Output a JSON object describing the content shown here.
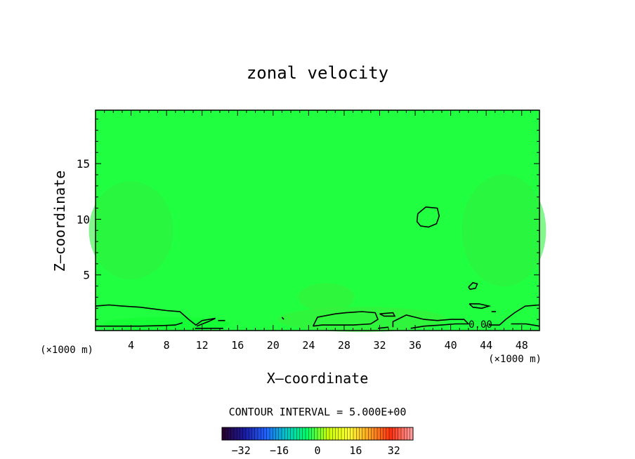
{
  "chart_data": {
    "type": "heatmap",
    "title": "zonal velocity",
    "xlabel": "X–coordinate",
    "ylabel": "Z–coordinate",
    "x_unit_left": "(×1000 m)",
    "x_unit_right": "(×1000 m)",
    "xlim": [
      0,
      50
    ],
    "ylim": [
      0,
      19.8
    ],
    "x_ticks": [
      4,
      8,
      12,
      16,
      20,
      24,
      28,
      32,
      36,
      40,
      44,
      48
    ],
    "y_ticks": [
      5,
      10,
      15
    ],
    "contour_interval_text": "CONTOUR INTERVAL = 5.000E+00",
    "contour_label": "0.00",
    "colorbar": {
      "min": -40,
      "max": 40,
      "ticks": [
        -32,
        -16,
        0,
        16,
        32
      ],
      "colors": [
        "#2a0033",
        "#1a1aa0",
        "#2060ff",
        "#00c8c8",
        "#00ff66",
        "#c8ff00",
        "#ffff30",
        "#ffa020",
        "#ff3010",
        "#ff9a9a"
      ]
    },
    "field_color": "#20ff40",
    "contours_zero": [
      [
        [
          0,
          2.2
        ],
        [
          1.5,
          2.3
        ],
        [
          3,
          2.2
        ],
        [
          5,
          2.1
        ],
        [
          7,
          1.9
        ],
        [
          8,
          1.8
        ],
        [
          9.5,
          1.7
        ],
        [
          10.5,
          1.0
        ],
        [
          11.3,
          0.5
        ],
        [
          12,
          0.9
        ],
        [
          13.5,
          1.1
        ],
        [
          12.7,
          0.8
        ],
        [
          11.4,
          0.4
        ]
      ],
      [
        [
          0,
          0.4
        ],
        [
          2.5,
          0.4
        ],
        [
          5,
          0.4
        ],
        [
          7.5,
          0.45
        ],
        [
          9,
          0.5
        ],
        [
          9.8,
          0.7
        ]
      ],
      [
        [
          11.2,
          0.2
        ],
        [
          14.4,
          0.2
        ]
      ],
      [
        [
          13.8,
          0.9
        ],
        [
          14.6,
          0.9
        ]
      ],
      [
        [
          21,
          1.2
        ],
        [
          21.2,
          1.0
        ]
      ],
      [
        [
          24.5,
          0.4
        ],
        [
          25,
          1.2
        ],
        [
          27,
          1.5
        ],
        [
          28.2,
          1.6
        ],
        [
          30,
          1.7
        ],
        [
          31.5,
          1.6
        ],
        [
          31.8,
          1.0
        ],
        [
          31,
          0.6
        ],
        [
          29,
          0.5
        ],
        [
          27,
          0.5
        ],
        [
          25.5,
          0.5
        ],
        [
          24.5,
          0.4
        ]
      ],
      [
        [
          31.8,
          0.2
        ],
        [
          33,
          0.3
        ]
      ],
      [
        [
          32,
          1.5
        ],
        [
          33.5,
          1.6
        ],
        [
          33.7,
          1.3
        ],
        [
          32.5,
          1.3
        ],
        [
          32,
          1.5
        ]
      ],
      [
        [
          33.5,
          0.3
        ],
        [
          33.5,
          0.8
        ],
        [
          34.5,
          1.2
        ],
        [
          35,
          1.4
        ],
        [
          36,
          1.2
        ],
        [
          37,
          1.0
        ],
        [
          38.5,
          0.9
        ],
        [
          40,
          1.0
        ],
        [
          41.5,
          1.0
        ],
        [
          42,
          0.6
        ],
        [
          40.5,
          0.6
        ],
        [
          39,
          0.5
        ],
        [
          37,
          0.4
        ],
        [
          35.5,
          0.2
        ]
      ],
      [
        [
          36.3,
          10.5
        ],
        [
          37.2,
          11.1
        ],
        [
          38.5,
          11.0
        ],
        [
          38.7,
          10.3
        ],
        [
          38.4,
          9.6
        ],
        [
          37.5,
          9.3
        ],
        [
          36.6,
          9.4
        ],
        [
          36.2,
          9.8
        ],
        [
          36.3,
          10.5
        ]
      ],
      [
        [
          42,
          3.9
        ],
        [
          42.5,
          4.3
        ],
        [
          43,
          4.2
        ],
        [
          42.8,
          3.8
        ],
        [
          42.2,
          3.7
        ],
        [
          42,
          3.9
        ]
      ],
      [
        [
          42.1,
          2.4
        ],
        [
          43.2,
          2.4
        ],
        [
          44.3,
          2.2
        ],
        [
          43.5,
          2.0
        ],
        [
          42.5,
          2.1
        ],
        [
          42.1,
          2.4
        ]
      ],
      [
        [
          44.6,
          1.7
        ],
        [
          45.1,
          1.7
        ]
      ],
      [
        [
          44.3,
          0.5
        ],
        [
          45.5,
          0.5
        ],
        [
          46.2,
          1.0
        ],
        [
          47.2,
          1.6
        ],
        [
          48.4,
          2.2
        ],
        [
          50,
          2.3
        ]
      ],
      [
        [
          46.8,
          0.6
        ],
        [
          48.5,
          0.6
        ],
        [
          50,
          0.4
        ]
      ]
    ]
  }
}
